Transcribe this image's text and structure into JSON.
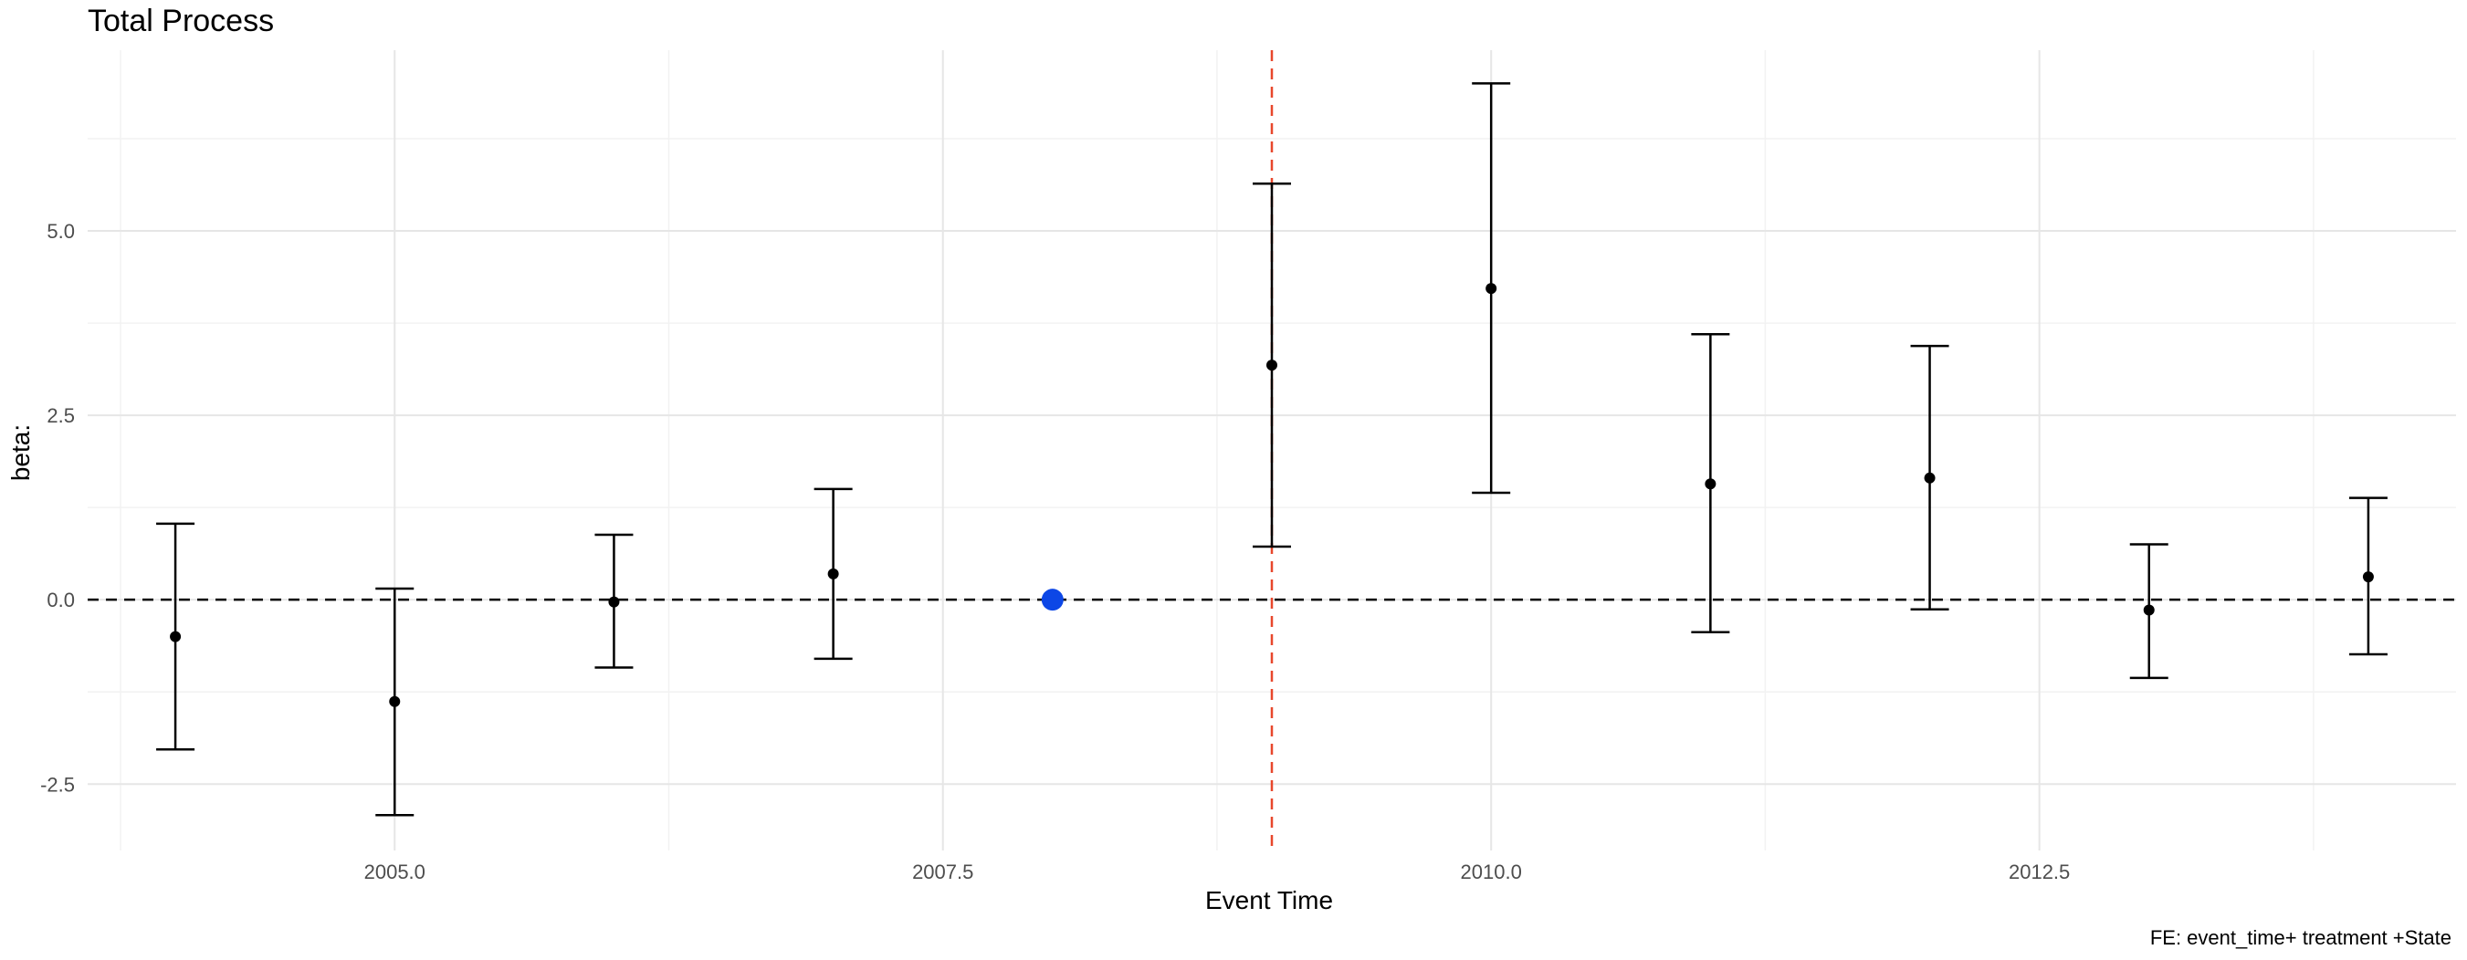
{
  "chart_data": {
    "type": "scatter",
    "title": "Total Process",
    "xlabel": "Event Time",
    "ylabel": "beta:",
    "caption": "FE: event_time+ treatment +State",
    "xlim": [
      2003.6,
      2014.4
    ],
    "ylim": [
      -3.4,
      7.45
    ],
    "x_ticks": [
      2005.0,
      2007.5,
      2010.0,
      2012.5
    ],
    "x_tick_labels": [
      "2005.0",
      "2007.5",
      "2010.0",
      "2012.5"
    ],
    "y_ticks": [
      -2.5,
      0.0,
      2.5,
      5.0
    ],
    "y_tick_labels": [
      "-2.5",
      "0.0",
      "2.5",
      "5.0"
    ],
    "grid": true,
    "reference_lines": {
      "horizontal_y": 0,
      "horizontal_style": "dashed",
      "horizontal_color": "#000000",
      "vertical_x": 2009,
      "vertical_style": "dashed",
      "vertical_color": "#e8472b"
    },
    "reference_point": {
      "x": 2008,
      "y": 0,
      "color": "#0d47e6"
    },
    "points": [
      {
        "x": 2004,
        "y": -0.5,
        "low": -2.03,
        "high": 1.03
      },
      {
        "x": 2005,
        "y": -1.38,
        "low": -2.92,
        "high": 0.15
      },
      {
        "x": 2006,
        "y": -0.03,
        "low": -0.92,
        "high": 0.88
      },
      {
        "x": 2007,
        "y": 0.35,
        "low": -0.8,
        "high": 1.5
      },
      {
        "x": 2009,
        "y": 3.18,
        "low": 0.72,
        "high": 5.64
      },
      {
        "x": 2010,
        "y": 4.22,
        "low": 1.45,
        "high": 7.0
      },
      {
        "x": 2011,
        "y": 1.57,
        "low": -0.44,
        "high": 3.6
      },
      {
        "x": 2012,
        "y": 1.65,
        "low": -0.13,
        "high": 3.44
      },
      {
        "x": 2013,
        "y": -0.14,
        "low": -1.06,
        "high": 0.75
      },
      {
        "x": 2014,
        "y": 0.31,
        "low": -0.74,
        "high": 1.38
      }
    ],
    "colors": {
      "points": "#000000",
      "errorbars": "#000000",
      "grid_major": "#e6e6e6",
      "grid_minor": "#f2f2f2"
    }
  }
}
